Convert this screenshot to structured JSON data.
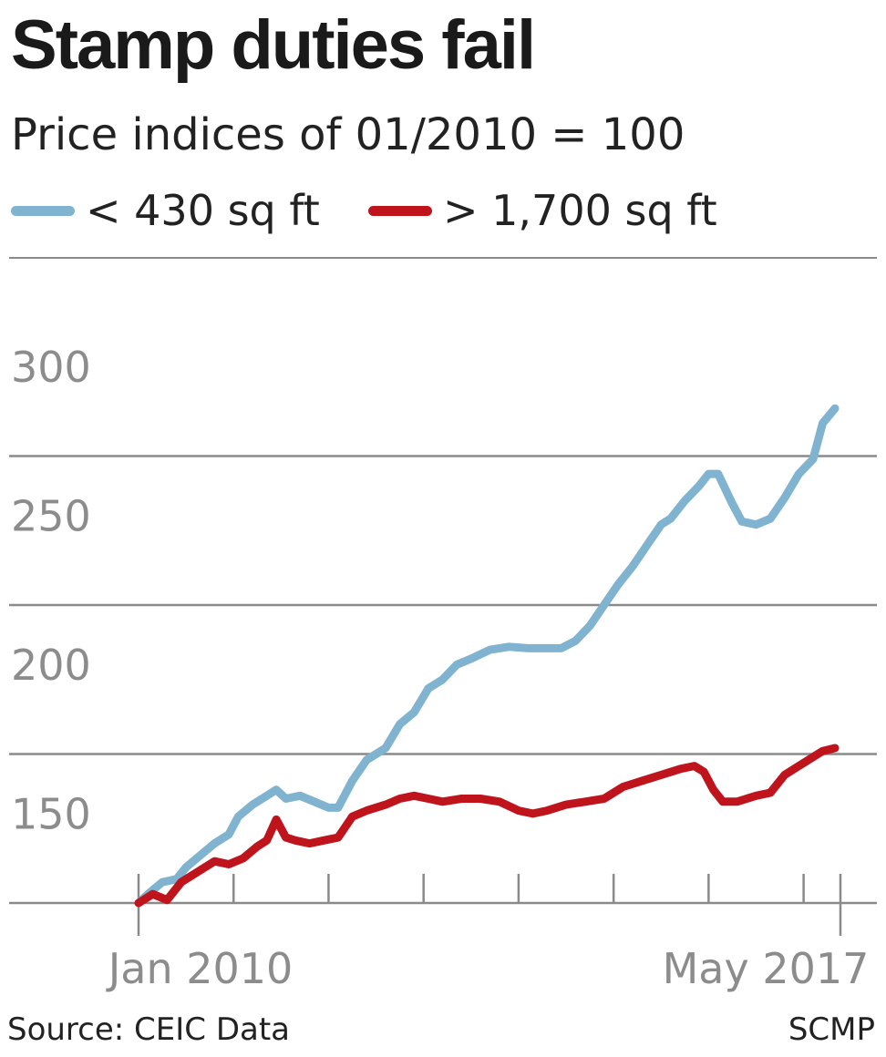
{
  "source": "Source: CEIC Data",
  "credit": "SCMP",
  "chart_data": {
    "type": "line",
    "title": "Stamp duties fail",
    "subtitle": "Price indices of 01/2010 = 100",
    "xlabel": "",
    "ylabel": "",
    "x_start": "Jan 2010",
    "x_end": "May 2017",
    "x_tick_labels": [
      "Jan 2010",
      "May 2017"
    ],
    "xlim": [
      2010.0,
      2017.33
    ],
    "ylim": [
      100,
      300
    ],
    "y_ticks": [
      150,
      200,
      250,
      300
    ],
    "grid": true,
    "legend_position": "top-left",
    "colors": {
      "small": "#7fb3cf",
      "large": "#c0141d",
      "grid": "#8a8a8a",
      "ticks": "#8c8c8c"
    },
    "series": [
      {
        "name": "< 430 sq ft",
        "color": "#7fb3cf",
        "points": [
          [
            2010.0,
            100
          ],
          [
            2010.1,
            103
          ],
          [
            2010.25,
            107
          ],
          [
            2010.4,
            108
          ],
          [
            2010.5,
            112
          ],
          [
            2010.65,
            116
          ],
          [
            2010.8,
            120
          ],
          [
            2010.95,
            123
          ],
          [
            2011.05,
            129
          ],
          [
            2011.2,
            133
          ],
          [
            2011.35,
            136
          ],
          [
            2011.45,
            138
          ],
          [
            2011.55,
            135
          ],
          [
            2011.7,
            136
          ],
          [
            2011.85,
            134
          ],
          [
            2012.0,
            132
          ],
          [
            2012.1,
            132
          ],
          [
            2012.25,
            141
          ],
          [
            2012.4,
            148
          ],
          [
            2012.6,
            152
          ],
          [
            2012.75,
            160
          ],
          [
            2012.9,
            164
          ],
          [
            2013.05,
            172
          ],
          [
            2013.2,
            175
          ],
          [
            2013.35,
            180
          ],
          [
            2013.5,
            182
          ],
          [
            2013.7,
            185
          ],
          [
            2013.9,
            186
          ],
          [
            2014.1,
            185.5
          ],
          [
            2014.3,
            185.5
          ],
          [
            2014.45,
            185.5
          ],
          [
            2014.6,
            188
          ],
          [
            2014.75,
            193
          ],
          [
            2014.9,
            200
          ],
          [
            2015.05,
            207
          ],
          [
            2015.2,
            213
          ],
          [
            2015.35,
            220
          ],
          [
            2015.5,
            227
          ],
          [
            2015.6,
            229
          ],
          [
            2015.75,
            235
          ],
          [
            2015.9,
            240
          ],
          [
            2016.0,
            244
          ],
          [
            2016.1,
            244
          ],
          [
            2016.25,
            234
          ],
          [
            2016.35,
            228
          ],
          [
            2016.5,
            227
          ],
          [
            2016.65,
            229
          ],
          [
            2016.8,
            236
          ],
          [
            2016.95,
            244
          ],
          [
            2017.1,
            249
          ],
          [
            2017.2,
            261
          ],
          [
            2017.33,
            266
          ]
        ]
      },
      {
        "name": "> 1,700 sq ft",
        "color": "#c0141d",
        "points": [
          [
            2010.0,
            100
          ],
          [
            2010.15,
            103
          ],
          [
            2010.3,
            101
          ],
          [
            2010.45,
            107
          ],
          [
            2010.6,
            110
          ],
          [
            2010.8,
            114
          ],
          [
            2010.95,
            113
          ],
          [
            2011.1,
            115
          ],
          [
            2011.25,
            119
          ],
          [
            2011.35,
            121
          ],
          [
            2011.45,
            128
          ],
          [
            2011.55,
            122
          ],
          [
            2011.65,
            121
          ],
          [
            2011.8,
            120
          ],
          [
            2011.95,
            121
          ],
          [
            2012.1,
            122
          ],
          [
            2012.25,
            129
          ],
          [
            2012.4,
            131
          ],
          [
            2012.6,
            133
          ],
          [
            2012.75,
            135
          ],
          [
            2012.9,
            136
          ],
          [
            2013.05,
            135
          ],
          [
            2013.2,
            134
          ],
          [
            2013.4,
            135
          ],
          [
            2013.6,
            135
          ],
          [
            2013.8,
            134
          ],
          [
            2014.0,
            131
          ],
          [
            2014.15,
            130
          ],
          [
            2014.3,
            131
          ],
          [
            2014.5,
            133
          ],
          [
            2014.7,
            134
          ],
          [
            2014.9,
            135
          ],
          [
            2015.1,
            139
          ],
          [
            2015.3,
            141
          ],
          [
            2015.5,
            143
          ],
          [
            2015.7,
            145
          ],
          [
            2015.85,
            146
          ],
          [
            2015.95,
            144
          ],
          [
            2016.05,
            138
          ],
          [
            2016.15,
            134
          ],
          [
            2016.3,
            134
          ],
          [
            2016.5,
            136
          ],
          [
            2016.65,
            137
          ],
          [
            2016.8,
            143
          ],
          [
            2016.95,
            146
          ],
          [
            2017.1,
            149
          ],
          [
            2017.2,
            151
          ],
          [
            2017.33,
            152
          ]
        ]
      }
    ]
  }
}
